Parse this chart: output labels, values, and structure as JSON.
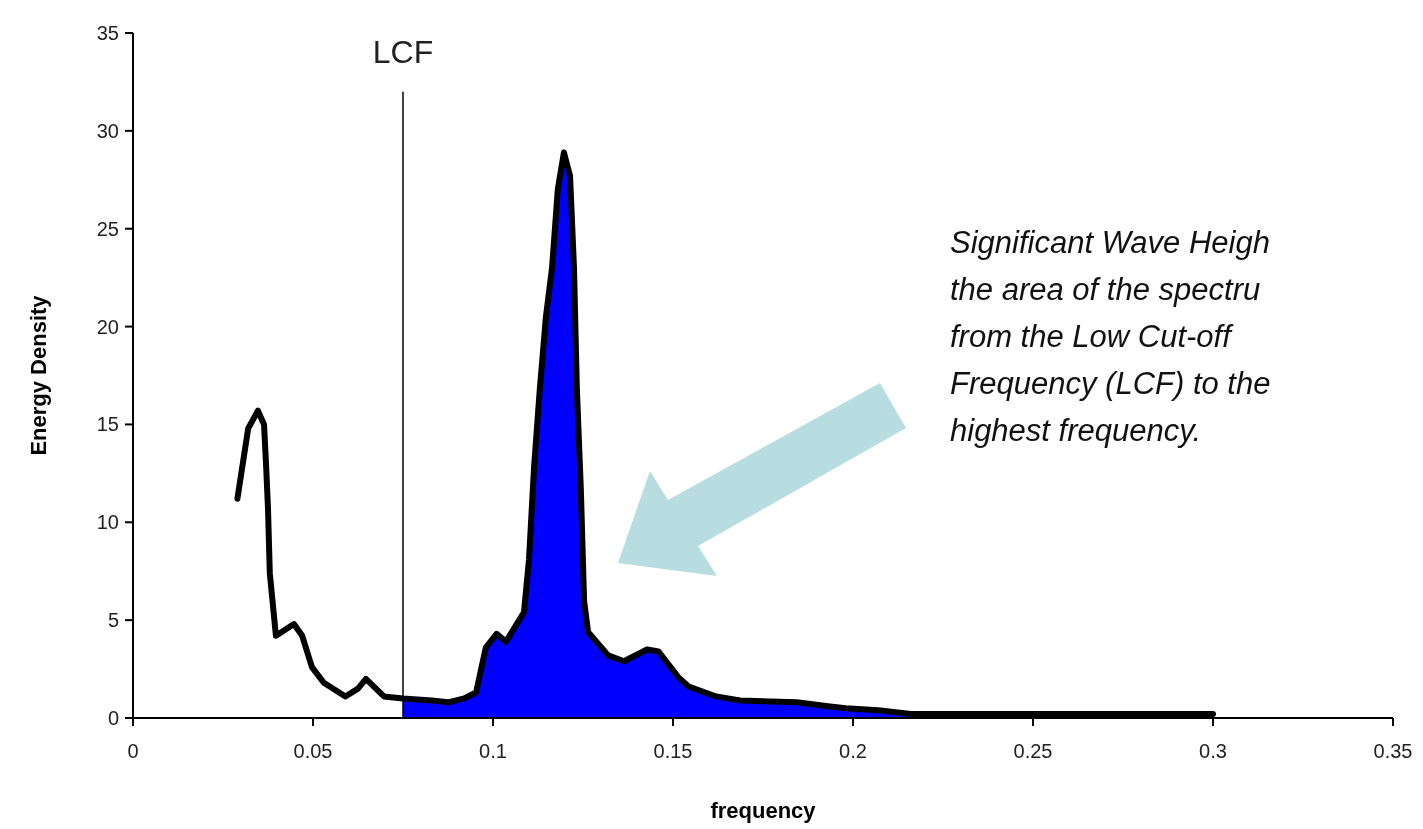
{
  "chart_data": {
    "type": "line",
    "xlabel": "frequency",
    "ylabel": "Energy Density",
    "xlim": [
      0,
      0.35
    ],
    "xticks": [
      0,
      0.05,
      0.1,
      0.15,
      0.2,
      0.25,
      0.3,
      0.35
    ],
    "ylim": [
      0,
      35
    ],
    "yticks": [
      0,
      5,
      10,
      15,
      20,
      25,
      30,
      35
    ],
    "grid": false,
    "series": [
      {
        "type": "area",
        "color": "#0000ff",
        "x": [
          0.075,
          0.083,
          0.0875,
          0.092,
          0.0953,
          0.098,
          0.101,
          0.1036,
          0.1086,
          0.11,
          0.1114,
          0.113,
          0.1147,
          0.1164,
          0.118,
          0.1197,
          0.1214,
          0.1225,
          0.1233,
          0.1244,
          0.1253,
          0.1264,
          0.132,
          0.1364,
          0.1428,
          0.146,
          0.1514,
          0.1544,
          0.162,
          0.1686,
          0.1844,
          0.193,
          0.198,
          0.207,
          0.216,
          0.3
        ],
        "values": [
          1,
          0.9,
          0.8,
          1,
          1.3,
          3.6,
          4.3,
          3.9,
          5.4,
          8.1,
          12.8,
          16.8,
          20.5,
          23,
          27,
          28.9,
          27.7,
          23,
          16.8,
          11.7,
          6,
          4.4,
          3.2,
          2.9,
          3.5,
          3.4,
          2.1,
          1.6,
          1.1,
          0.9,
          0.8,
          0.6,
          0.5,
          0.4,
          0.2,
          0.2
        ]
      },
      {
        "color": "#000000",
        "x": [
          0.029,
          0.032,
          0.0347,
          0.0364,
          0.037,
          0.0375,
          0.038,
          0.0397,
          0.0447,
          0.047,
          0.0497,
          0.053,
          0.059,
          0.0625,
          0.0647,
          0.0697,
          0.075,
          0.083,
          0.0875,
          0.092,
          0.0953,
          0.098,
          0.101,
          0.1036,
          0.1086,
          0.11,
          0.1114,
          0.113,
          0.1147,
          0.1164,
          0.118,
          0.1197,
          0.1214,
          0.1225,
          0.1233,
          0.1244,
          0.1253,
          0.1264,
          0.132,
          0.1364,
          0.1428,
          0.146,
          0.1514,
          0.1544,
          0.162,
          0.1686,
          0.1844,
          0.193,
          0.198,
          0.207,
          0.216,
          0.3
        ],
        "values": [
          11.2,
          14.8,
          15.7,
          15,
          12.8,
          10.7,
          7.4,
          4.2,
          4.8,
          4.2,
          2.6,
          1.8,
          1.1,
          1.5,
          2,
          1.1,
          1,
          0.9,
          0.8,
          1,
          1.3,
          3.6,
          4.3,
          3.9,
          5.4,
          8.1,
          12.8,
          16.8,
          20.5,
          23,
          27,
          28.9,
          27.7,
          23,
          16.8,
          11.7,
          6,
          4.4,
          3.2,
          2.9,
          3.5,
          3.4,
          2.1,
          1.6,
          1.1,
          0.9,
          0.8,
          0.6,
          0.5,
          0.4,
          0.2,
          0.2
        ]
      }
    ],
    "ref_lines": [
      {
        "axis": "x",
        "value": 0.075,
        "label": "LCF",
        "color": "#000000"
      }
    ],
    "annotations": [
      "Significant Wave Heigh\nthe area of the spectru\nfrom the Low Cut-off\nFrequency (LCF) to the\nhighest frequency."
    ]
  }
}
